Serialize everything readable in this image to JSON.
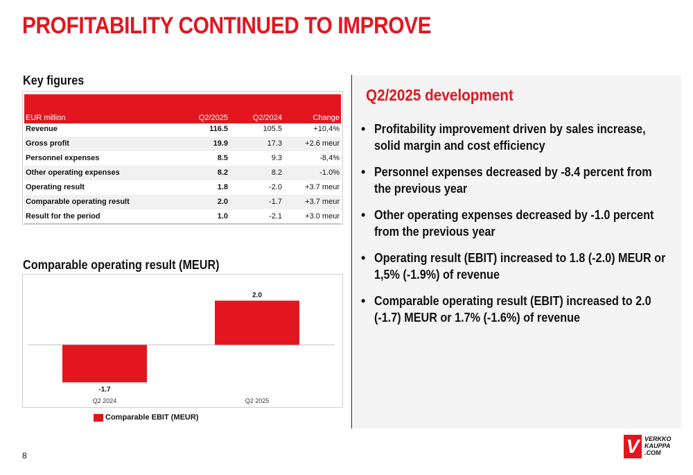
{
  "title": "PROFITABILITY CONTINUED TO IMPROVE",
  "key_figures": {
    "label": "Key figures",
    "headers": [
      "EUR million",
      "Q2/2025",
      "Q2/2024",
      "Change"
    ],
    "rows": [
      {
        "name": "Revenue",
        "q2_2025": "116.5",
        "q2_2024": "105.5",
        "change": "+10,4%"
      },
      {
        "name": "Gross profit",
        "q2_2025": "19.9",
        "q2_2024": "17.3",
        "change": "+2.6 meur"
      },
      {
        "name": "Personnel expenses",
        "q2_2025": "8.5",
        "q2_2024": "9.3",
        "change": "-8,4%"
      },
      {
        "name": "Other operating expenses",
        "q2_2025": "8.2",
        "q2_2024": "8.2",
        "change": "-1.0%"
      },
      {
        "name": "Operating result",
        "q2_2025": "1.8",
        "q2_2024": "-2.0",
        "change": "+3.7 meur"
      },
      {
        "name": "Comparable operating result",
        "q2_2025": "2.0",
        "q2_2024": "-1.7",
        "change": "+3.7 meur"
      },
      {
        "name": "Result for the period",
        "q2_2025": "1.0",
        "q2_2024": "-2.1",
        "change": "+3.0 meur"
      }
    ]
  },
  "chart_label": "Comparable operating result (MEUR)",
  "chart_data": {
    "type": "bar",
    "categories": [
      "Q2 2024",
      "Q2 2025"
    ],
    "series": [
      {
        "name": "Comparable EBIT (MEUR)",
        "values": [
          -1.7,
          2.0
        ],
        "color": "#e3161f"
      }
    ],
    "data_labels": [
      "-1.7",
      "2.0"
    ],
    "ylim": [
      -2.0,
      2.3
    ],
    "grid": false,
    "legend": "bottom-left"
  },
  "panel": {
    "title": "Q2/2025 development",
    "bullets": [
      "Profitability improvement driven by sales increase, solid margin and cost efficiency",
      "Personnel expenses decreased by -8.4 percent from the previous year",
      "Other operating expenses decreased by -1.0 percent from the previous year",
      "Operating result (EBIT) increased to 1.8 (-2.0) MEUR or 1,5% (-1.9%) of revenue",
      "Comparable operating result (EBIT) increased to 2.0 (-1.7) MEUR or 1.7% (-1.6%) of revenue"
    ]
  },
  "page_number": "8",
  "logo": {
    "mark": "V",
    "text": [
      "VERKKO",
      "KAUPPA",
      ".COM"
    ],
    "color": "#e3161f"
  }
}
